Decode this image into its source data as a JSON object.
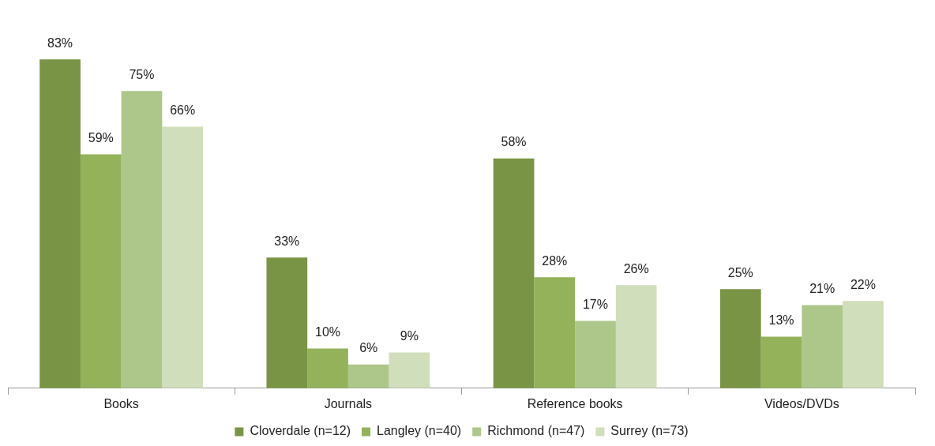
{
  "chart_data": {
    "type": "bar",
    "categories": [
      "Books",
      "Journals",
      "Reference books",
      "Videos/DVDs"
    ],
    "series": [
      {
        "name": "Cloverdale (n=12)",
        "color": "#7a9445",
        "values": [
          83,
          33,
          58,
          25
        ],
        "value_labels": [
          "83%",
          "33%",
          "58%",
          "25%"
        ]
      },
      {
        "name": "Langley (n=40)",
        "color": "#93b25a",
        "values": [
          59,
          10,
          28,
          13
        ],
        "value_labels": [
          "59%",
          "10%",
          "28%",
          "13%"
        ]
      },
      {
        "name": "Richmond (n=47)",
        "color": "#adc68a",
        "values": [
          75,
          6,
          17,
          21
        ],
        "value_labels": [
          "75%",
          "6%",
          "17%",
          "21%"
        ]
      },
      {
        "name": "Surrey (n=73)",
        "color": "#d1debb",
        "values": [
          66,
          9,
          26,
          22
        ],
        "value_labels": [
          "66%",
          "9%",
          "26%",
          "22%"
        ]
      }
    ],
    "grid": false,
    "legend": "bottom"
  }
}
